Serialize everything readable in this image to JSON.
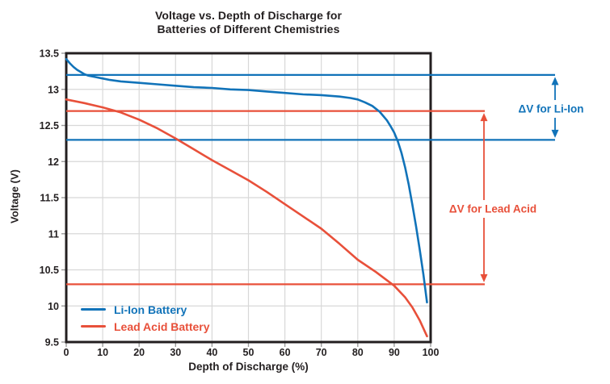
{
  "chart_data": {
    "type": "line",
    "title": "Voltage vs. Depth of Discharge for Batteries of Different Chemistries",
    "title_lines": [
      "Voltage vs. Depth of Discharge for",
      "Batteries of Different Chemistries"
    ],
    "xlabel": "Depth of Discharge (%)",
    "ylabel": "Voltage (V)",
    "xlim": [
      0,
      100
    ],
    "ylim": [
      9.5,
      13.5
    ],
    "x_ticks": [
      0,
      10,
      20,
      30,
      40,
      50,
      60,
      70,
      80,
      90,
      100
    ],
    "x_tick_labels": [
      "0",
      "10",
      "20",
      "30",
      "40",
      "50",
      "60",
      "70",
      "80",
      "90",
      "100"
    ],
    "y_ticks": [
      13.5,
      13,
      12.5,
      12,
      11.5,
      11,
      10.5,
      10,
      9.5
    ],
    "y_tick_labels": [
      "13.5",
      "13",
      "12.5",
      "12",
      "11.5",
      "11",
      "10.5",
      "10",
      "9.5"
    ],
    "grid": true,
    "legend": {
      "position": "lower-left",
      "entries": [
        "Li-Ion Battery",
        "Lead Acid Battery"
      ]
    },
    "series": [
      {
        "name": "Li-Ion Battery",
        "color": "#1173B9",
        "points": [
          [
            0,
            13.42
          ],
          [
            1,
            13.36
          ],
          [
            2,
            13.31
          ],
          [
            3,
            13.27
          ],
          [
            4,
            13.24
          ],
          [
            5,
            13.21
          ],
          [
            6,
            13.19
          ],
          [
            8,
            13.17
          ],
          [
            10,
            13.15
          ],
          [
            12,
            13.13
          ],
          [
            15,
            13.11
          ],
          [
            20,
            13.09
          ],
          [
            25,
            13.07
          ],
          [
            30,
            13.05
          ],
          [
            35,
            13.03
          ],
          [
            40,
            13.02
          ],
          [
            45,
            13.0
          ],
          [
            50,
            12.99
          ],
          [
            55,
            12.97
          ],
          [
            60,
            12.95
          ],
          [
            65,
            12.93
          ],
          [
            70,
            12.92
          ],
          [
            75,
            12.9
          ],
          [
            78,
            12.88
          ],
          [
            80,
            12.86
          ],
          [
            82,
            12.82
          ],
          [
            84,
            12.77
          ],
          [
            86,
            12.69
          ],
          [
            88,
            12.57
          ],
          [
            89,
            12.49
          ],
          [
            90,
            12.4
          ],
          [
            91,
            12.28
          ],
          [
            92,
            12.12
          ],
          [
            93,
            11.92
          ],
          [
            94,
            11.68
          ],
          [
            95,
            11.4
          ],
          [
            96,
            11.1
          ],
          [
            97,
            10.78
          ],
          [
            98,
            10.44
          ],
          [
            99,
            10.05
          ]
        ]
      },
      {
        "name": "Lead Acid Battery",
        "color": "#E8503A",
        "points": [
          [
            0,
            12.86
          ],
          [
            5,
            12.81
          ],
          [
            10,
            12.75
          ],
          [
            15,
            12.68
          ],
          [
            20,
            12.58
          ],
          [
            25,
            12.46
          ],
          [
            30,
            12.32
          ],
          [
            35,
            12.17
          ],
          [
            40,
            12.02
          ],
          [
            45,
            11.88
          ],
          [
            50,
            11.74
          ],
          [
            55,
            11.58
          ],
          [
            60,
            11.41
          ],
          [
            65,
            11.24
          ],
          [
            70,
            11.07
          ],
          [
            75,
            10.86
          ],
          [
            80,
            10.64
          ],
          [
            85,
            10.47
          ],
          [
            90,
            10.28
          ],
          [
            93,
            10.12
          ],
          [
            95,
            9.98
          ],
          [
            97,
            9.8
          ],
          [
            99,
            9.58
          ]
        ]
      }
    ],
    "reference_lines": [
      {
        "series": "Li-Ion Battery",
        "color": "#1173B9",
        "voltages": [
          13.2,
          12.3
        ]
      },
      {
        "series": "Lead Acid Battery",
        "color": "#E8503A",
        "voltages": [
          12.7,
          10.3
        ]
      }
    ],
    "annotations": [
      {
        "label": "ΔV for Li-Ion",
        "color": "#1173B9",
        "v_top": 13.2,
        "v_bottom": 12.3
      },
      {
        "label": "ΔV for Lead Acid",
        "color": "#E8503A",
        "v_top": 12.7,
        "v_bottom": 10.3
      }
    ]
  },
  "colors": {
    "axis": "#231F20",
    "grid": "#D8D8D8",
    "tick": "#9B9B9B",
    "background": "#FFFFFF",
    "liion_blue": "#1173B9",
    "lead_acid_red": "#E8503A"
  }
}
